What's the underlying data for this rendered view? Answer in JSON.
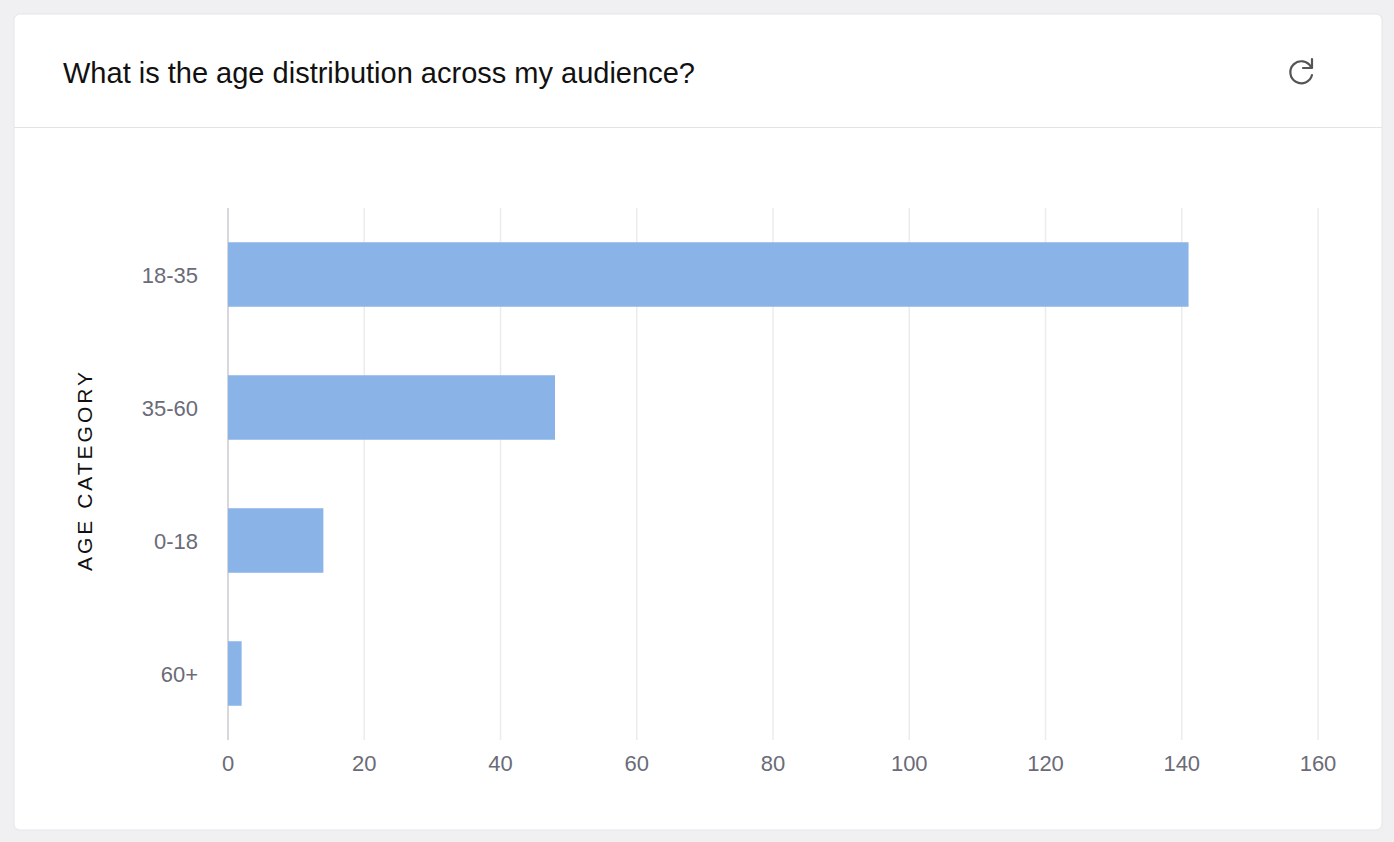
{
  "chart_data": {
    "type": "bar",
    "title": "What is the age distribution across my audience?",
    "ylabel": "AGE CATEGORY",
    "categories": [
      "18-35",
      "35-60",
      "0-18",
      "60+"
    ],
    "values": [
      141,
      48,
      14,
      2
    ],
    "color": "#8ab4e8",
    "orientation": "horizontal",
    "xlim": [
      0,
      160
    ],
    "xticks": [
      0,
      20,
      40,
      60,
      80,
      100,
      120,
      140,
      160
    ],
    "grid": true
  }
}
